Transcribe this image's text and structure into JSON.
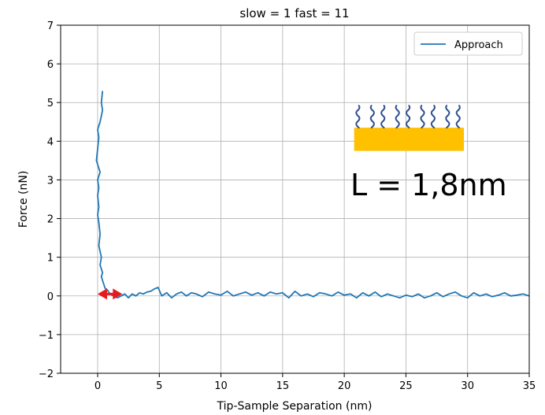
{
  "chart_data": {
    "type": "line",
    "title": "slow = 1 fast = 11",
    "xlabel": "Tip-Sample Separation (nm)",
    "ylabel": "Force (nN)",
    "xlim": [
      -3,
      35
    ],
    "ylim": [
      -2,
      7
    ],
    "xticks": [
      0,
      5,
      10,
      15,
      20,
      25,
      30,
      35
    ],
    "yticks": [
      -2,
      -1,
      0,
      1,
      2,
      3,
      4,
      5,
      6,
      7
    ],
    "xtick_labels": [
      "0",
      "5",
      "10",
      "15",
      "20",
      "25",
      "30",
      "35"
    ],
    "ytick_labels": [
      "−2",
      "−1",
      "0",
      "1",
      "2",
      "3",
      "4",
      "5",
      "6",
      "7"
    ],
    "grid": true,
    "legend_position": "top-right",
    "series": [
      {
        "name": "Approach",
        "color": "#1f77b4",
        "x": [
          0.4,
          0.3,
          0.4,
          0.2,
          0.0,
          0.1,
          -0.1,
          0.2,
          0.0,
          0.1,
          0.0,
          0.1,
          0.0,
          0.1,
          0.2,
          0.1,
          0.3,
          0.2,
          0.4,
          0.3,
          0.4,
          0.5,
          0.6,
          0.8,
          1.0,
          1.3,
          1.6,
          1.9,
          2.2,
          2.5,
          2.8,
          3.1,
          3.4,
          3.7,
          4.0,
          4.3,
          4.6,
          4.9,
          5.2,
          5.6,
          6.0,
          6.4,
          6.8,
          7.2,
          7.6,
          8.0,
          8.5,
          9.0,
          9.5,
          10.0,
          10.5,
          11.0,
          11.5,
          12.0,
          12.5,
          13.0,
          13.5,
          14.0,
          14.5,
          15.0,
          15.5,
          16.0,
          16.5,
          17.0,
          17.5,
          18.0,
          18.5,
          19.0,
          19.5,
          20.0,
          20.5,
          21.0,
          21.5,
          22.0,
          22.5,
          23.0,
          23.5,
          24.0,
          24.5,
          25.0,
          25.5,
          26.0,
          26.5,
          27.0,
          27.5,
          28.0,
          28.5,
          29.0,
          29.5,
          30.0,
          30.5,
          31.0,
          31.5,
          32.0,
          32.5,
          33.0,
          33.5,
          34.0,
          34.5,
          35.0
        ],
        "y": [
          5.3,
          5.0,
          4.8,
          4.5,
          4.3,
          4.1,
          3.5,
          3.2,
          3.0,
          2.8,
          2.6,
          2.3,
          2.1,
          1.9,
          1.6,
          1.3,
          1.0,
          0.8,
          0.6,
          0.5,
          0.4,
          0.3,
          0.2,
          0.15,
          0.05,
          0.0,
          -0.05,
          0.0,
          0.05,
          -0.05,
          0.05,
          0.0,
          0.08,
          0.05,
          0.1,
          0.12,
          0.18,
          0.22,
          0.0,
          0.08,
          -0.05,
          0.05,
          0.1,
          0.0,
          0.08,
          0.05,
          -0.02,
          0.1,
          0.05,
          0.02,
          0.12,
          0.0,
          0.05,
          0.1,
          0.02,
          0.08,
          0.0,
          0.1,
          0.05,
          0.08,
          -0.05,
          0.12,
          0.0,
          0.05,
          -0.02,
          0.08,
          0.05,
          0.0,
          0.1,
          0.02,
          0.05,
          -0.05,
          0.08,
          0.0,
          0.1,
          -0.02,
          0.05,
          0.0,
          -0.05,
          0.02,
          -0.02,
          0.05,
          -0.05,
          0.0,
          0.08,
          -0.02,
          0.05,
          0.1,
          0.0,
          -0.05,
          0.08,
          0.0,
          0.05,
          -0.02,
          0.02,
          0.08,
          0.0,
          0.02,
          0.05,
          0.0
        ]
      }
    ],
    "annotations": [
      {
        "kind": "text",
        "text": "L = 1,8nm",
        "x": 20.5,
        "y": 2.6
      },
      {
        "kind": "double-arrow",
        "color": "#e8191c",
        "x_start": 0.0,
        "x_end": 2.0,
        "y": 0.05
      },
      {
        "kind": "substrate-schematic",
        "substrate_color": "#ffc000",
        "chain_color": "#2f4f8f",
        "x_start": 20.8,
        "x_end": 29.7,
        "y_bottom": 3.75,
        "y_top": 4.35
      }
    ]
  }
}
